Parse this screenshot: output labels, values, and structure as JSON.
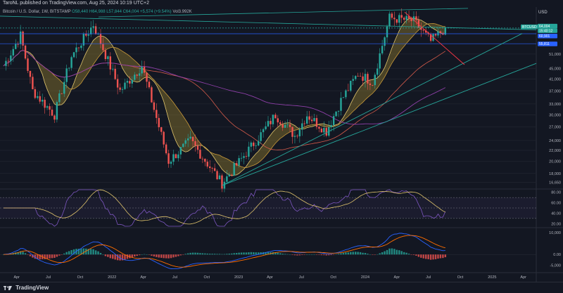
{
  "header": {
    "published": "TaroNL published on TradingView.com, Aug 25, 2024 10:19 UTC+2"
  },
  "symbol_bar": {
    "name": "Bitcoin / U.S. Dollar, 1W, BITSTAMP",
    "o": "O58,440",
    "h": "H64,988",
    "l": "L57,844",
    "c": "C64,004",
    "chg": "+5,574 (+9.54%)",
    "vol": "Vol3.992K"
  },
  "price_scale": {
    "currency": "USD",
    "ticks": [
      "51,000",
      "45,000",
      "41,000",
      "37,000",
      "33,000",
      "30,000",
      "27,000",
      "24,000",
      "22,000",
      "20,000",
      "18,000",
      "16,650"
    ],
    "labels": [
      {
        "text": "BTCUSD",
        "color": "#26a69a"
      },
      {
        "text": "64,004",
        "color": "#26a69a"
      },
      {
        "text": "15:40:12",
        "color": "#26a69a"
      },
      {
        "text": "60,901",
        "color": "#2962ff"
      },
      {
        "text": "55,811",
        "color": "#2962ff"
      }
    ]
  },
  "rsi_scale": {
    "ticks": [
      "80.00",
      "60.00",
      "40.00",
      "20.00"
    ]
  },
  "macd_scale": {
    "ticks": [
      "10,000",
      "0.00",
      "-5,000"
    ]
  },
  "time_axis": [
    "Apr",
    "Jul",
    "Oct",
    "2022",
    "Apr",
    "Jul",
    "Oct",
    "2023",
    "Apr",
    "Jul",
    "Oct",
    "2024",
    "Apr",
    "Jul",
    "Oct",
    "2025",
    "Apr"
  ],
  "footer": {
    "brand": "TradingView"
  },
  "colors": {
    "up": "#26a69a",
    "down": "#ef5350",
    "blue": "#2962ff",
    "teal": "#26a69a",
    "purple": "#9c27b0",
    "red": "#f23645"
  },
  "chart_data": {
    "type": "candlestick",
    "symbol": "BTCUSD",
    "interval": "1W",
    "x_start": "2021-02-22",
    "weekly_close_anchors": [
      {
        "date": "2021-02-22",
        "close": 46000
      },
      {
        "date": "2021-04-12",
        "close": 60000
      },
      {
        "date": "2021-05-17",
        "close": 37000
      },
      {
        "date": "2021-07-19",
        "close": 30000
      },
      {
        "date": "2021-09-06",
        "close": 50000
      },
      {
        "date": "2021-11-08",
        "close": 66000
      },
      {
        "date": "2022-01-24",
        "close": 37000
      },
      {
        "date": "2022-03-28",
        "close": 46000
      },
      {
        "date": "2022-06-13",
        "close": 20000
      },
      {
        "date": "2022-08-15",
        "close": 24000
      },
      {
        "date": "2022-11-14",
        "close": 16500
      },
      {
        "date": "2023-03-13",
        "close": 26000
      },
      {
        "date": "2023-04-17",
        "close": 30000
      },
      {
        "date": "2023-06-12",
        "close": 25000
      },
      {
        "date": "2023-07-17",
        "close": 30000
      },
      {
        "date": "2023-09-11",
        "close": 26000
      },
      {
        "date": "2023-10-23",
        "close": 34000
      },
      {
        "date": "2023-12-11",
        "close": 43000
      },
      {
        "date": "2024-01-22",
        "close": 40000
      },
      {
        "date": "2024-03-11",
        "close": 70000
      },
      {
        "date": "2024-05-20",
        "close": 68000
      },
      {
        "date": "2024-07-08",
        "close": 57000
      },
      {
        "date": "2024-08-19",
        "close": 64004
      }
    ],
    "horizontal_levels": [
      64004,
      60901,
      55811
    ],
    "ylim": [
      16000,
      75000
    ],
    "y_scale": "log"
  }
}
